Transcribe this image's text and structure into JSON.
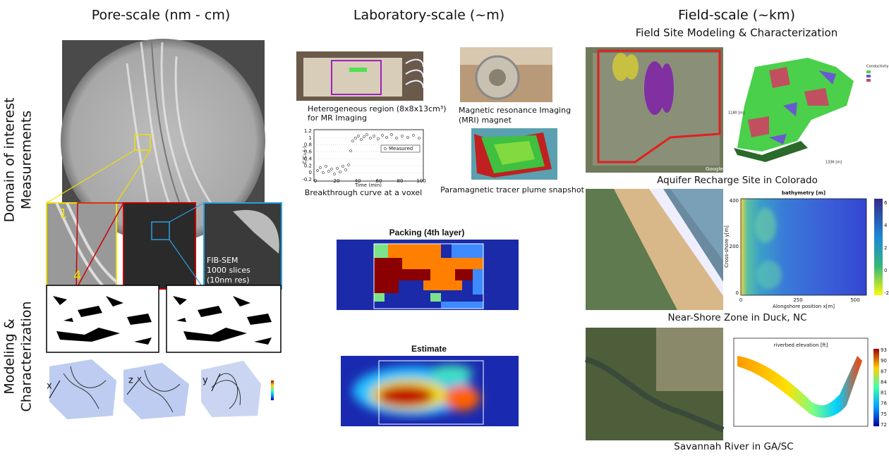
{
  "headers": {
    "pore": "Pore-scale (nm - cm)",
    "lab": "Laboratory-scale (~m)",
    "field": "Field-scale (~km)",
    "field_subtitle": "Field Site Modeling & Characterization"
  },
  "row_labels": {
    "measurements": [
      "Domain of interest",
      "Measurements"
    ],
    "modeling": [
      "Modeling &",
      "Characterization"
    ]
  },
  "pore": {
    "zoom_labels": [
      "1",
      "4"
    ],
    "fib_sem": [
      "FIB-SEM",
      "1000 slices",
      "(10nm res)"
    ],
    "axes": [
      "x",
      "z",
      "y"
    ]
  },
  "lab": {
    "sample_caption": [
      "Heterogeneous region (8x8x13cm³)",
      "for MR Imaging"
    ],
    "magnet_caption": [
      "Magnetic resonance Imaging",
      "(MRI) magnet"
    ],
    "breakthrough": {
      "caption": "Breakthrough curve at a voxel",
      "legend": "Measured",
      "xlabel": "Time (min)",
      "ylabel": "C/C₀ (-)",
      "xticks": [
        "0",
        "20",
        "40",
        "60",
        "80",
        "100"
      ],
      "yticks": [
        "1.2",
        "1",
        "0.8",
        "0.6",
        "0.4",
        "0.2",
        "0",
        "-0.2"
      ]
    },
    "plume_caption": "Paramagnetic tracer plume snapshot",
    "packing_title": "Packing (4th layer)",
    "estimate_title": "Estimate"
  },
  "field": {
    "aquifer_caption": "Aquifer Recharge Site in Colorado",
    "aquifer_3d": {
      "legend_title": "Conductivity",
      "y_extent": "1180 [m]",
      "x_extent": "1336 [m]"
    },
    "google": "Google earth",
    "nearshore_caption": "Near-Shore Zone in Duck, NC",
    "bathymetry": {
      "title": "bathymetry [m]",
      "ylabel": "Cross-shore y[m]",
      "xlabel": "Alongshore position x[m]",
      "yticks": [
        "400",
        "200",
        "0"
      ],
      "xticks": [
        "0",
        "250",
        "500"
      ],
      "cbar_ticks": [
        "6",
        "4",
        "2",
        "0",
        "-2"
      ]
    },
    "river_caption": "Savannah River in GA/SC",
    "riverbed": {
      "title": "riverbed elevation [ft]",
      "cbar_ticks": [
        "93",
        "90",
        "87",
        "84",
        "81",
        "78",
        "75",
        "72"
      ]
    }
  }
}
